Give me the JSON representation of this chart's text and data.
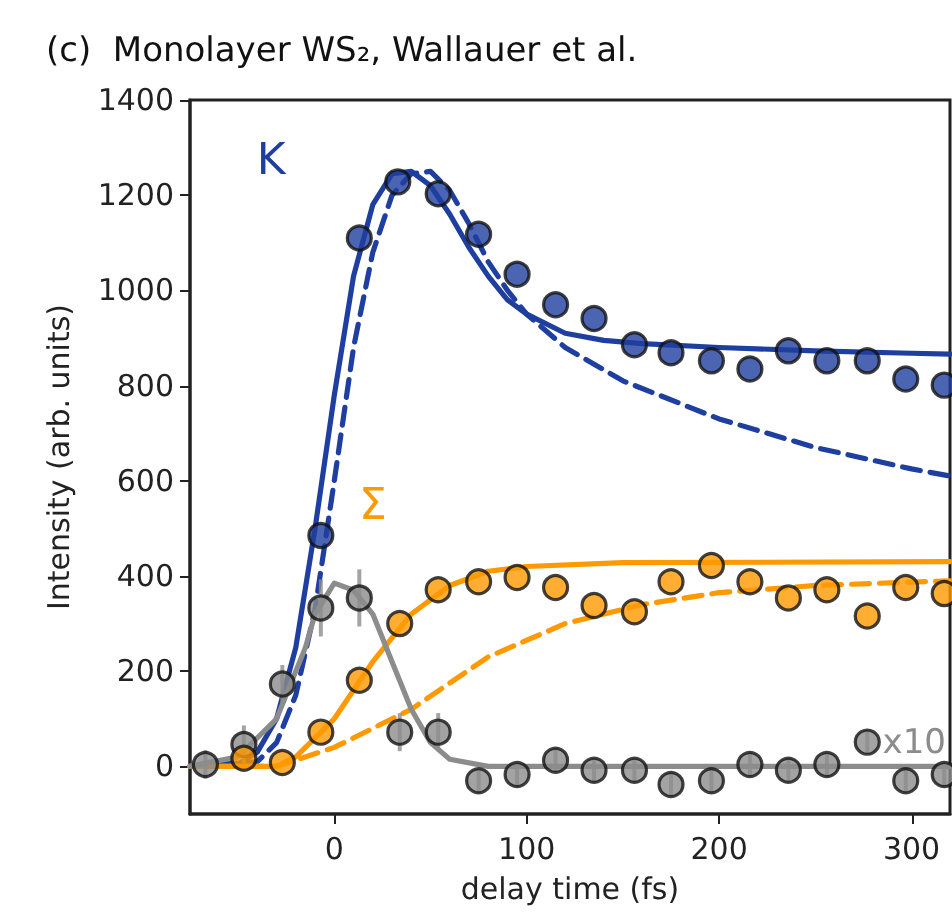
{
  "chart_data": {
    "type": "scatter",
    "title": "(c)  Monolayer WS₂, Wallauer et al.",
    "xlabel": "delay time (fs)",
    "ylabel": "Intensity (arb. units)",
    "xlim": [
      -75,
      320
    ],
    "xticks": [
      0,
      100,
      200,
      300
    ],
    "ylim": [
      -100,
      1400
    ],
    "yticks": [
      0,
      200,
      400,
      600,
      800,
      1000,
      1200,
      1400
    ],
    "grid": false,
    "legend": false,
    "annotations": [
      "x10"
    ],
    "series": [
      {
        "name": "K",
        "type": "line",
        "marker": "none",
        "line_style": "solid",
        "color": "#1f3fa0",
        "x": [
          -75,
          -50,
          -40,
          -30,
          -20,
          -10,
          0,
          10,
          20,
          30,
          40,
          50,
          60,
          70,
          80,
          90,
          100,
          120,
          140,
          160,
          200,
          250,
          300,
          320
        ],
        "values": [
          0,
          5,
          30,
          100,
          250,
          500,
          780,
          1030,
          1180,
          1245,
          1250,
          1220,
          1160,
          1090,
          1030,
          980,
          950,
          910,
          895,
          888,
          880,
          873,
          868,
          866
        ]
      },
      {
        "type": "line",
        "marker": "none",
        "line_style": "dashed",
        "color": "#1f3fa0",
        "x": [
          -75,
          -40,
          -30,
          -20,
          -10,
          0,
          10,
          20,
          30,
          40,
          50,
          60,
          70,
          80,
          90,
          100,
          120,
          150,
          200,
          250,
          300,
          320
        ],
        "values": [
          0,
          10,
          50,
          150,
          330,
          600,
          880,
          1080,
          1200,
          1245,
          1250,
          1210,
          1140,
          1060,
          1000,
          950,
          880,
          810,
          730,
          670,
          625,
          610
        ]
      },
      {
        "name": "Σ",
        "type": "line",
        "marker": "none",
        "line_style": "solid",
        "color": "#ff9900",
        "x": [
          -75,
          -30,
          -20,
          0,
          20,
          40,
          60,
          80,
          100,
          150,
          320
        ],
        "values": [
          0,
          0,
          20,
          100,
          220,
          320,
          380,
          410,
          420,
          428,
          430
        ]
      },
      {
        "type": "line",
        "marker": "none",
        "line_style": "dashed",
        "color": "#ff9900",
        "x": [
          -75,
          -30,
          0,
          40,
          80,
          120,
          160,
          200,
          250,
          320
        ],
        "values": [
          0,
          0,
          40,
          120,
          230,
          300,
          340,
          365,
          380,
          390
        ]
      },
      {
        "type": "line",
        "marker": "none",
        "line_style": "solid",
        "color": "#8c8c8c",
        "x": [
          -75,
          -50,
          -30,
          -15,
          -10,
          0,
          10,
          20,
          30,
          40,
          50,
          60,
          80,
          320
        ],
        "values": [
          0,
          20,
          100,
          250,
          320,
          385,
          370,
          320,
          220,
          120,
          50,
          15,
          0,
          0
        ]
      },
      {
        "marker": "circle",
        "color": "#8c8c8c",
        "x": [
          -67,
          -47,
          -27,
          -7,
          13,
          34,
          54,
          75,
          95,
          115,
          135,
          156,
          175,
          196,
          216,
          236,
          256,
          277,
          297,
          317
        ],
        "values": [
          4,
          46,
          173,
          333,
          354,
          72,
          72,
          -30,
          -17,
          13,
          -8,
          -8,
          -38,
          -30,
          4,
          -8,
          4,
          51,
          -30,
          -17
        ],
        "errors": [
          30,
          40,
          40,
          60,
          60,
          40,
          40,
          25,
          25,
          25,
          25,
          25,
          25,
          25,
          25,
          25,
          25,
          25,
          25,
          25
        ]
      },
      {
        "marker": "circle",
        "color": "#ff9900",
        "x": [
          -47,
          -27,
          -7,
          13,
          34,
          54,
          75,
          95,
          115,
          135,
          156,
          175,
          196,
          216,
          236,
          256,
          277,
          297,
          317
        ],
        "values": [
          17,
          8,
          72,
          181,
          300,
          371,
          388,
          397,
          376,
          338,
          325,
          388,
          422,
          388,
          354,
          371,
          316,
          376,
          363
        ]
      },
      {
        "marker": "circle",
        "color": "#1f3fa0",
        "x": [
          -7,
          13,
          33,
          54,
          75,
          95,
          115,
          135,
          156,
          175,
          196,
          216,
          236,
          256,
          277,
          297,
          317
        ],
        "values": [
          485,
          1110,
          1228,
          1203,
          1118,
          1034,
          970,
          941,
          886,
          869,
          852,
          835,
          873,
          852,
          852,
          814,
          801
        ]
      }
    ]
  }
}
